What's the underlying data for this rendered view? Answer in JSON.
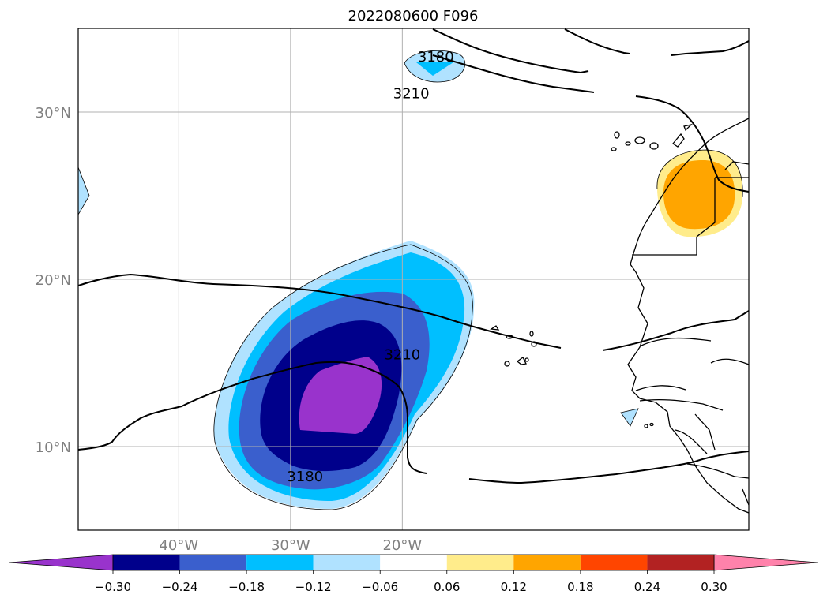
{
  "chart_data": {
    "type": "contour-map",
    "title": "2022080600 F096",
    "map": {
      "lon_range": [
        -49,
        11
      ],
      "lat_range": [
        5,
        35
      ],
      "grid": true,
      "x_ticks": [
        {
          "value": -40,
          "label": "40°W"
        },
        {
          "value": -30,
          "label": "30°W"
        },
        {
          "value": -20,
          "label": "20°W"
        }
      ],
      "y_ticks": [
        {
          "value": 30,
          "label": "30°N"
        },
        {
          "value": 20,
          "label": "20°N"
        },
        {
          "value": 10,
          "label": "10°N"
        }
      ]
    },
    "contour_lines": [
      {
        "label": "3180",
        "label_at": [
          -17,
          33.3
        ]
      },
      {
        "label": "3210",
        "label_at": [
          -19.2,
          31.1
        ]
      },
      {
        "label": "3210",
        "label_at": [
          -20,
          15.5
        ]
      },
      {
        "label": "3180",
        "label_at": [
          -28.7,
          8.2
        ]
      }
    ],
    "colorbar": {
      "ticks": [
        "−0.30",
        "−0.24",
        "−0.18",
        "−0.12",
        "−0.06",
        "0.06",
        "0.12",
        "0.18",
        "0.24",
        "0.30"
      ],
      "levels": [
        -0.3,
        -0.24,
        -0.18,
        -0.12,
        -0.06,
        0.06,
        0.12,
        0.18,
        0.24,
        0.3
      ],
      "colors": [
        "#9933cc",
        "#00008b",
        "#3a5fcd",
        "#00bfff",
        "#b0e2ff",
        "#ffffff",
        "#ffec8b",
        "#ffa500",
        "#ff4500",
        "#b22222",
        "#ff82ab"
      ],
      "extend": "both",
      "placement": "bottom"
    }
  }
}
